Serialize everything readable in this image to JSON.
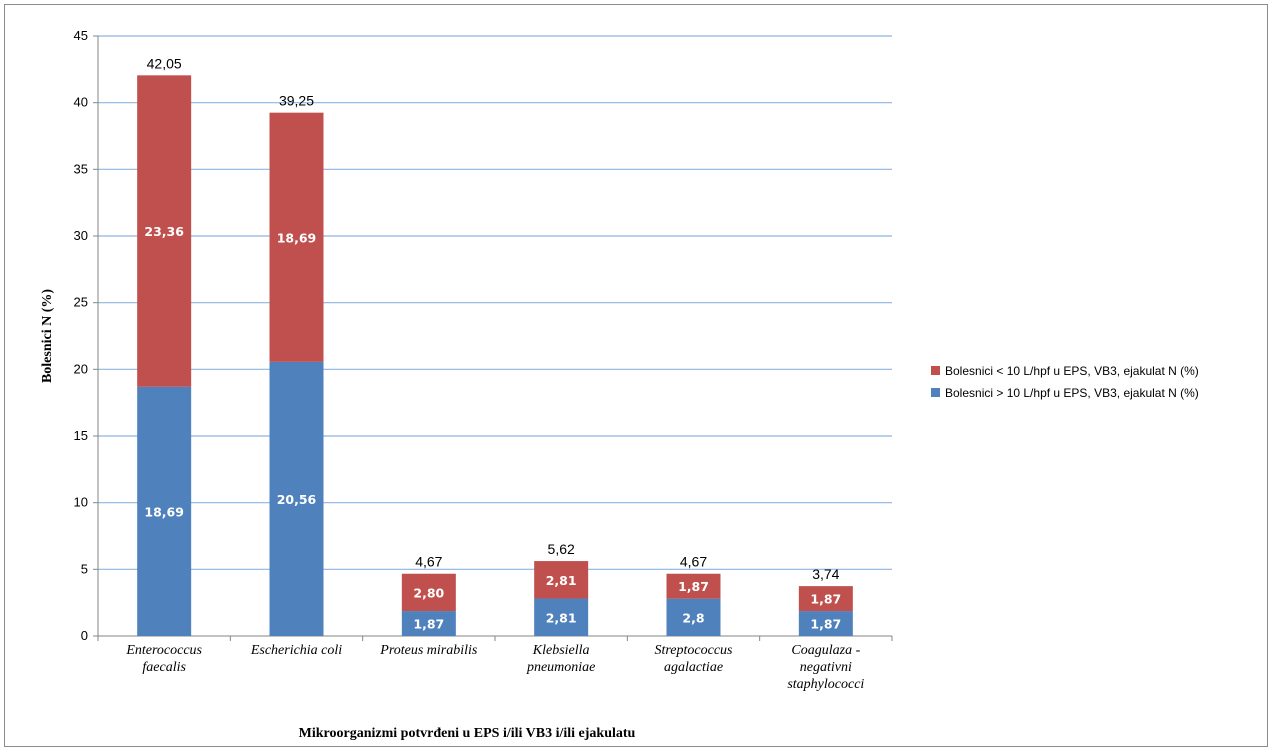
{
  "chart_data": {
    "type": "bar",
    "stacked": true,
    "categories": [
      [
        "Enterococcus",
        "faecalis"
      ],
      [
        "Escherichia coli"
      ],
      [
        "Proteus mirabilis"
      ],
      [
        "Klebsiella",
        "pneumoniae"
      ],
      [
        "Streptococcus",
        "agalactiae"
      ],
      [
        "Coagulaza -",
        "negativni",
        "staphylococci"
      ]
    ],
    "series": [
      {
        "name": "Bolesnici > 10 L/hpf u EPS, VB3, ejakulat N (%)",
        "color": "#4f81bd",
        "values": [
          18.69,
          20.56,
          1.87,
          2.81,
          2.8,
          1.87
        ],
        "labels": [
          "18,69",
          "20,56",
          "1,87",
          "2,81",
          "2,8",
          "1,87"
        ]
      },
      {
        "name": "Bolesnici < 10 L/hpf u EPS, VB3, ejakulat N (%)",
        "color": "#c0504d",
        "values": [
          23.36,
          18.69,
          2.8,
          2.81,
          1.87,
          1.87
        ],
        "labels": [
          "23,36",
          "18,69",
          "2,80",
          "2,81",
          "1,87",
          "1,87"
        ]
      }
    ],
    "totals": [
      42.05,
      39.25,
      4.67,
      5.62,
      4.67,
      3.74
    ],
    "total_labels": [
      "42,05",
      "39,25",
      "4,67",
      "5,62",
      "4,67",
      "3,74"
    ],
    "ylim": [
      0,
      45
    ],
    "yticks": [
      0,
      5,
      10,
      15,
      20,
      25,
      30,
      35,
      40,
      45
    ],
    "ylabel": "Bolesnici N (%)",
    "xlabel": "Mikroorganizmi potvrđeni u EPS i/ili VB3 i/ili ejakulatu",
    "grid": true,
    "gridColor": "#8eb4e3",
    "legend_position": "right"
  }
}
